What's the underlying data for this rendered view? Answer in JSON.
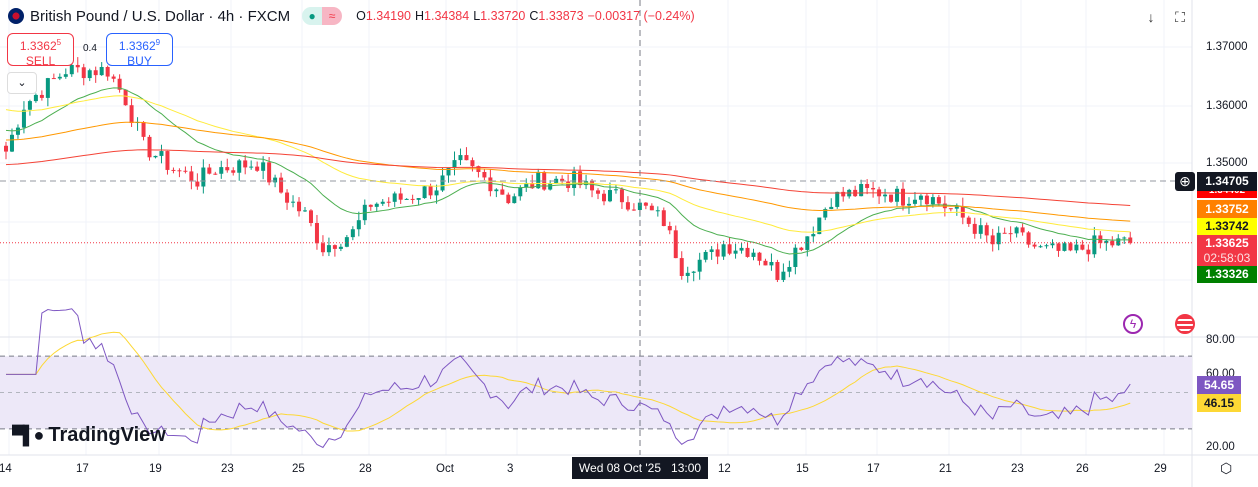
{
  "header": {
    "symbol_title": "British Pound / U.S. Dollar · 4h · FXCM",
    "open_label": "O",
    "open": "1.34190",
    "high_label": "H",
    "high": "1.34384",
    "low_label": "L",
    "low": "1.33720",
    "close_label": "C",
    "close": "1.33873",
    "change": "−0.00317 (−0.24%)",
    "market_status_icon": "dot",
    "indicator_icon": "≈"
  },
  "trade": {
    "sell_price": "1.3362",
    "sell_sup": "5",
    "sell_label": "SELL",
    "spread": "0.4",
    "buy_price": "1.3362",
    "buy_sup": "9",
    "buy_label": "BUY"
  },
  "toolbar": {
    "collapse_icon": "chevron-down",
    "download_icon": "↓",
    "fullscreen_icon": "⛶"
  },
  "price_axis": {
    "ticks": [
      "1.37000",
      "1.36000",
      "1.35000"
    ],
    "tick_values": [
      1.37,
      1.36,
      1.35
    ]
  },
  "price_tags": {
    "crosshair": "1.34705",
    "ma200": "1.34402",
    "ma100": "1.33752",
    "ma50": "1.33742",
    "last": "1.33625",
    "countdown": "02:58:03",
    "ma20": "1.33326"
  },
  "rsi": {
    "ticks": [
      "80.00",
      "60.00",
      "20.00"
    ],
    "rsi_value": "54.65",
    "rsi_ma_value": "46.15",
    "upper": 70,
    "lower": 30
  },
  "time_axis": {
    "labels": [
      "14",
      "17",
      "19",
      "23",
      "25",
      "28",
      "Oct",
      "3",
      "12",
      "15",
      "17",
      "21",
      "23",
      "26",
      "29"
    ],
    "crosshair_label": "Wed 08 Oct '25",
    "crosshair_time": "13:00"
  },
  "logo": "TradingView",
  "colors": {
    "up": "#089981",
    "down": "#f23645",
    "ma20": "#4caf50",
    "ma50": "#ffeb3b",
    "ma100": "#ff9800",
    "ma200": "#f44336",
    "rsi": "#7e57c2",
    "rsi_ma": "#fdd835"
  },
  "chart_data": {
    "type": "candlestick",
    "timeframe": "4h",
    "close_path": [
      [
        0,
        1.352
      ],
      [
        3,
        1.36
      ],
      [
        10,
        1.366
      ],
      [
        17,
        1.366
      ],
      [
        20,
        1.361
      ],
      [
        23,
        1.353
      ],
      [
        28,
        1.349
      ],
      [
        32,
        1.347
      ],
      [
        35,
        1.349
      ],
      [
        42,
        1.35
      ],
      [
        46,
        1.345
      ],
      [
        50,
        1.341
      ],
      [
        53,
        1.3355
      ],
      [
        58,
        1.338
      ],
      [
        61,
        1.343
      ],
      [
        67,
        1.344
      ],
      [
        72,
        1.346
      ],
      [
        76,
        1.35
      ],
      [
        82,
        1.346
      ],
      [
        84,
        1.344
      ],
      [
        89,
        1.347
      ],
      [
        95,
        1.347
      ],
      [
        98,
        1.345
      ],
      [
        103,
        1.344
      ],
      [
        107,
        1.342
      ],
      [
        110,
        1.34
      ],
      [
        113,
        1.332
      ],
      [
        118,
        1.334
      ],
      [
        120,
        1.336
      ],
      [
        125,
        1.335
      ],
      [
        129,
        1.331
      ],
      [
        132,
        1.335
      ],
      [
        135,
        1.339
      ],
      [
        138,
        1.344
      ],
      [
        143,
        1.345
      ],
      [
        147,
        1.345
      ],
      [
        150,
        1.344
      ],
      [
        153,
        1.345
      ],
      [
        158,
        1.342
      ],
      [
        162,
        1.339
      ],
      [
        165,
        1.336
      ],
      [
        168,
        1.338
      ],
      [
        173,
        1.335
      ],
      [
        178,
        1.3345
      ],
      [
        182,
        1.336
      ],
      [
        188,
        1.3363
      ]
    ]
  }
}
